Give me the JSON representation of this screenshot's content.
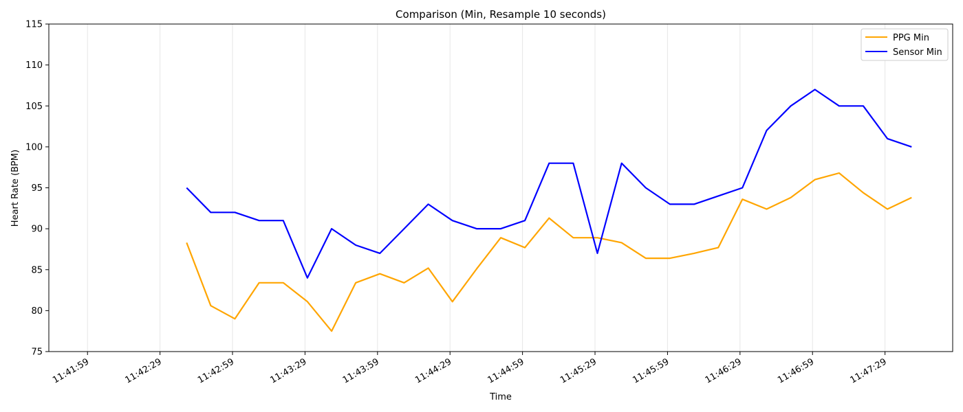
{
  "chart_data": {
    "type": "line",
    "title": "Comparison (Min, Resample 10 seconds)",
    "xlabel": "Time",
    "ylabel": "Heart Rate (BPM)",
    "grid": "vertical",
    "legend_position": "top-right",
    "x_ticks": [
      "11:41:59",
      "11:42:29",
      "11:42:59",
      "11:43:29",
      "11:43:59",
      "11:44:29",
      "11:44:59",
      "11:45:29",
      "11:45:59",
      "11:46:29",
      "11:46:59",
      "11:47:29"
    ],
    "xlim": [
      "11:41:43",
      "11:47:57"
    ],
    "y_ticks": [
      75,
      80,
      85,
      90,
      95,
      100,
      105,
      110,
      115
    ],
    "ylim": [
      75,
      115
    ],
    "x": [
      "11:42:40",
      "11:42:50",
      "11:43:00",
      "11:43:10",
      "11:43:20",
      "11:43:30",
      "11:43:40",
      "11:43:50",
      "11:44:00",
      "11:44:10",
      "11:44:20",
      "11:44:30",
      "11:44:40",
      "11:44:50",
      "11:45:00",
      "11:45:10",
      "11:45:20",
      "11:45:30",
      "11:45:40",
      "11:45:50",
      "11:46:00",
      "11:46:10",
      "11:46:20",
      "11:46:30",
      "11:46:40",
      "11:46:50",
      "11:47:00",
      "11:47:10",
      "11:47:20",
      "11:47:30",
      "11:47:40"
    ],
    "series": [
      {
        "name": "PPG Min",
        "color": "#ffa500",
        "values": [
          88.3,
          80.6,
          79.0,
          83.4,
          83.4,
          81.1,
          77.5,
          83.4,
          84.5,
          83.4,
          85.2,
          81.1,
          85.1,
          88.9,
          87.7,
          91.3,
          88.9,
          88.9,
          88.3,
          86.4,
          86.4,
          87.0,
          87.7,
          93.6,
          92.4,
          93.8,
          96.0,
          96.8,
          94.4,
          92.4,
          93.8
        ]
      },
      {
        "name": "Sensor Min",
        "color": "#0000ff",
        "values": [
          95,
          92,
          92,
          91,
          91,
          84,
          90,
          88,
          87,
          90,
          93,
          91,
          90,
          90,
          91,
          98,
          98,
          87,
          98,
          95,
          93,
          93,
          94,
          95,
          102,
          105,
          107,
          105,
          105,
          101,
          100
        ]
      }
    ]
  }
}
